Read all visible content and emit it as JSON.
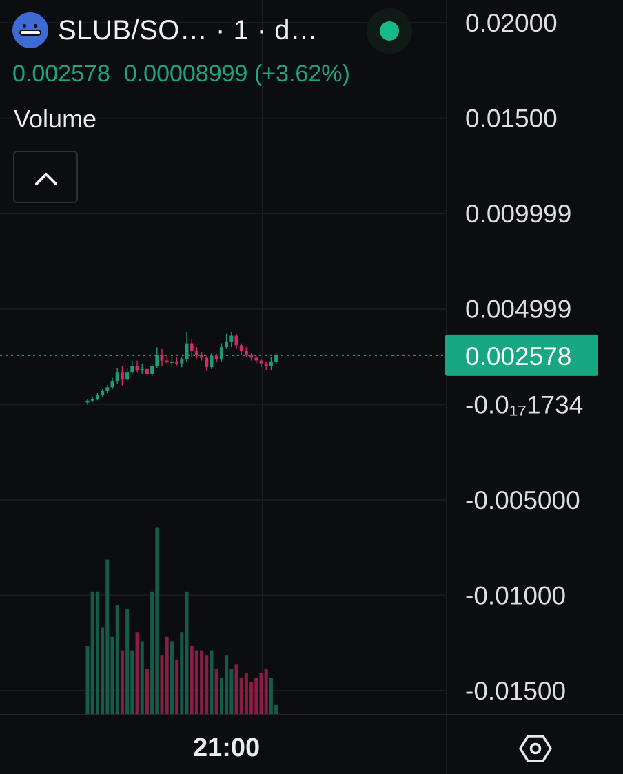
{
  "header": {
    "symbol": "SLUB/SO…  · 1 · d…",
    "last_price": "0.002578",
    "change": "0.00008999 (+3.62%)",
    "status_color": "#17b88c"
  },
  "panel": {
    "volume_label": "Volume",
    "collapse_icon": "chevron-up-icon",
    "settings_icon": "hexagon-settings-icon"
  },
  "colors": {
    "up": "#1a9c76",
    "down": "#d4285e",
    "background": "#0c0d10",
    "price_tag": "#17a883"
  },
  "chart_data": {
    "type": "candlestick",
    "price_axis": {
      "ticks": [
        {
          "value": 0.02,
          "label": "0.02000"
        },
        {
          "value": 0.015,
          "label": "0.01500"
        },
        {
          "value": 0.01,
          "label": "0.009999"
        },
        {
          "value": 0.005,
          "label": "0.004999"
        },
        {
          "value": 0.0,
          "label": "-0.0₁₇1734"
        },
        {
          "value": -0.005,
          "label": "-0.005000"
        },
        {
          "value": -0.01,
          "label": "-0.01000"
        },
        {
          "value": -0.015,
          "label": "-0.01500"
        }
      ],
      "current_price": 0.002578,
      "current_label": "0.002578"
    },
    "time_axis": {
      "labels": [
        "21:00"
      ],
      "label_index": 28
    },
    "candles": [
      {
        "o": 0.0001,
        "h": 0.00028,
        "l": 0.0,
        "c": 0.0002
      },
      {
        "o": 0.0002,
        "h": 0.00038,
        "l": 0.00012,
        "c": 0.0003
      },
      {
        "o": 0.0003,
        "h": 0.0006,
        "l": 0.00022,
        "c": 0.0005
      },
      {
        "o": 0.0005,
        "h": 0.0008,
        "l": 0.0004,
        "c": 0.0007
      },
      {
        "o": 0.0007,
        "h": 0.001,
        "l": 0.00062,
        "c": 0.0009
      },
      {
        "o": 0.0009,
        "h": 0.0014,
        "l": 0.0008,
        "c": 0.0012
      },
      {
        "o": 0.0012,
        "h": 0.0019,
        "l": 0.0011,
        "c": 0.0017
      },
      {
        "o": 0.0017,
        "h": 0.002,
        "l": 0.001,
        "c": 0.0013
      },
      {
        "o": 0.0013,
        "h": 0.0019,
        "l": 0.0012,
        "c": 0.0017
      },
      {
        "o": 0.0017,
        "h": 0.0023,
        "l": 0.0016,
        "c": 0.002
      },
      {
        "o": 0.002,
        "h": 0.0023,
        "l": 0.0017,
        "c": 0.0018
      },
      {
        "o": 0.0018,
        "h": 0.0021,
        "l": 0.0016,
        "c": 0.00185
      },
      {
        "o": 0.00185,
        "h": 0.0019,
        "l": 0.0015,
        "c": 0.0016
      },
      {
        "o": 0.0016,
        "h": 0.0021,
        "l": 0.0015,
        "c": 0.002
      },
      {
        "o": 0.002,
        "h": 0.003,
        "l": 0.0019,
        "c": 0.0026
      },
      {
        "o": 0.0026,
        "h": 0.0029,
        "l": 0.002,
        "c": 0.0023
      },
      {
        "o": 0.0023,
        "h": 0.0026,
        "l": 0.0021,
        "c": 0.0022
      },
      {
        "o": 0.0022,
        "h": 0.0025,
        "l": 0.002,
        "c": 0.00225
      },
      {
        "o": 0.00225,
        "h": 0.00245,
        "l": 0.00205,
        "c": 0.00215
      },
      {
        "o": 0.00215,
        "h": 0.0025,
        "l": 0.00195,
        "c": 0.00235
      },
      {
        "o": 0.00235,
        "h": 0.0038,
        "l": 0.00225,
        "c": 0.0032
      },
      {
        "o": 0.0032,
        "h": 0.0034,
        "l": 0.0025,
        "c": 0.0028
      },
      {
        "o": 0.0028,
        "h": 0.003,
        "l": 0.0024,
        "c": 0.0026
      },
      {
        "o": 0.0026,
        "h": 0.00275,
        "l": 0.0023,
        "c": 0.00245
      },
      {
        "o": 0.00245,
        "h": 0.00255,
        "l": 0.00175,
        "c": 0.00195
      },
      {
        "o": 0.00195,
        "h": 0.0027,
        "l": 0.00185,
        "c": 0.00255
      },
      {
        "o": 0.00255,
        "h": 0.00265,
        "l": 0.0022,
        "c": 0.00235
      },
      {
        "o": 0.00235,
        "h": 0.0032,
        "l": 0.00225,
        "c": 0.003
      },
      {
        "o": 0.003,
        "h": 0.0037,
        "l": 0.0029,
        "c": 0.0033
      },
      {
        "o": 0.0033,
        "h": 0.0038,
        "l": 0.003,
        "c": 0.0036
      },
      {
        "o": 0.0036,
        "h": 0.0037,
        "l": 0.0029,
        "c": 0.0031
      },
      {
        "o": 0.0031,
        "h": 0.0032,
        "l": 0.0026,
        "c": 0.0028
      },
      {
        "o": 0.0028,
        "h": 0.003,
        "l": 0.0025,
        "c": 0.0026
      },
      {
        "o": 0.0026,
        "h": 0.0027,
        "l": 0.0023,
        "c": 0.00245
      },
      {
        "o": 0.00245,
        "h": 0.00255,
        "l": 0.00215,
        "c": 0.0023
      },
      {
        "o": 0.0023,
        "h": 0.0024,
        "l": 0.00195,
        "c": 0.00215
      },
      {
        "o": 0.00215,
        "h": 0.00225,
        "l": 0.0018,
        "c": 0.002
      },
      {
        "o": 0.002,
        "h": 0.0025,
        "l": 0.0018,
        "c": 0.00225
      },
      {
        "o": 0.00225,
        "h": 0.0027,
        "l": 0.0021,
        "c": 0.002578
      }
    ],
    "volume": [
      15,
      27,
      27,
      19,
      34,
      17,
      24,
      14,
      23,
      14,
      18,
      16,
      10,
      27,
      41,
      13,
      17,
      16,
      12,
      18,
      27,
      15,
      14,
      14,
      13,
      14,
      10,
      8,
      13,
      10,
      11,
      8,
      9,
      7,
      8,
      9,
      10,
      8,
      2
    ],
    "volume_axis_max": 45,
    "grid": true
  }
}
